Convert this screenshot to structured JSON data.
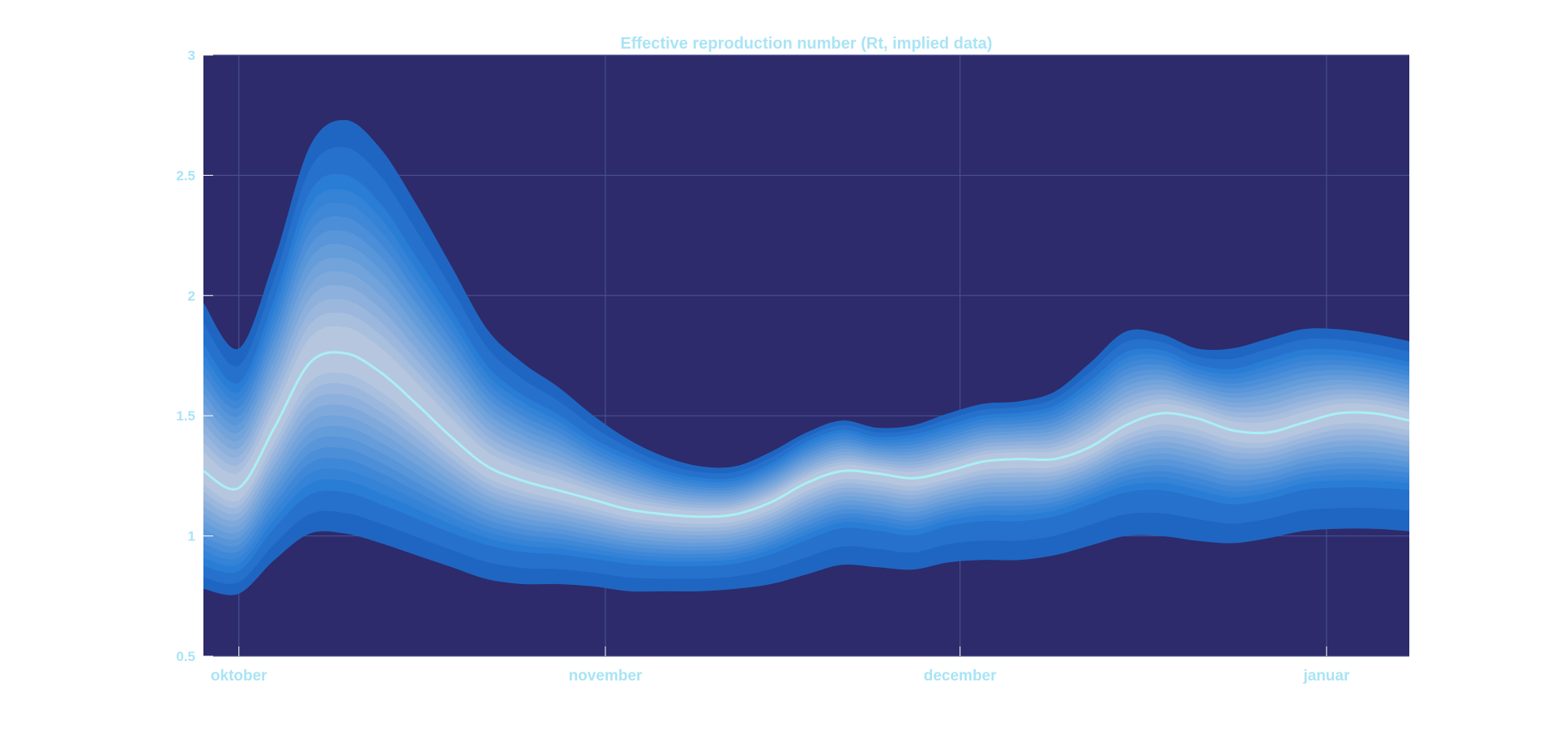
{
  "chart_data": {
    "type": "area",
    "title": "Effective reproduction number (Rt, implied data)",
    "xlabel": "",
    "ylabel": "",
    "x_ticks": [
      "oktober",
      "november",
      "december",
      "januar"
    ],
    "y_ticks": [
      "0.5",
      "1",
      "1.5",
      "2",
      "2.5",
      "3"
    ],
    "xlim": [
      "2020-09-28",
      "2021-01-08"
    ],
    "ylim": [
      0.5,
      3
    ],
    "grid": true,
    "x": [
      "2020-09-28",
      "2020-10-01",
      "2020-10-04",
      "2020-10-07",
      "2020-10-10",
      "2020-10-13",
      "2020-10-16",
      "2020-10-19",
      "2020-10-22",
      "2020-10-25",
      "2020-10-28",
      "2020-10-31",
      "2020-11-03",
      "2020-11-06",
      "2020-11-09",
      "2020-11-12",
      "2020-11-15",
      "2020-11-18",
      "2020-11-21",
      "2020-11-24",
      "2020-11-27",
      "2020-11-30",
      "2020-12-03",
      "2020-12-06",
      "2020-12-09",
      "2020-12-12",
      "2020-12-15",
      "2020-12-18",
      "2020-12-21",
      "2020-12-24",
      "2020-12-27",
      "2020-12-30",
      "2021-01-02",
      "2021-01-05",
      "2021-01-08"
    ],
    "median": [
      1.27,
      1.2,
      1.45,
      1.72,
      1.76,
      1.68,
      1.55,
      1.41,
      1.29,
      1.23,
      1.19,
      1.15,
      1.11,
      1.09,
      1.08,
      1.09,
      1.14,
      1.22,
      1.27,
      1.26,
      1.24,
      1.27,
      1.31,
      1.32,
      1.32,
      1.37,
      1.46,
      1.51,
      1.49,
      1.44,
      1.43,
      1.47,
      1.51,
      1.51,
      1.48
    ],
    "bands": [
      {
        "level": "outer",
        "lower": [
          0.78,
          0.76,
          0.9,
          1.01,
          1.01,
          0.97,
          0.92,
          0.87,
          0.82,
          0.8,
          0.8,
          0.79,
          0.77,
          0.77,
          0.77,
          0.78,
          0.8,
          0.84,
          0.88,
          0.87,
          0.86,
          0.89,
          0.9,
          0.9,
          0.92,
          0.96,
          1.0,
          1.0,
          0.98,
          0.97,
          0.99,
          1.02,
          1.03,
          1.03,
          1.02
        ],
        "upper": [
          1.97,
          1.78,
          2.15,
          2.62,
          2.73,
          2.61,
          2.38,
          2.12,
          1.86,
          1.72,
          1.62,
          1.5,
          1.4,
          1.33,
          1.29,
          1.29,
          1.35,
          1.43,
          1.48,
          1.45,
          1.46,
          1.51,
          1.55,
          1.56,
          1.6,
          1.72,
          1.85,
          1.84,
          1.78,
          1.78,
          1.82,
          1.86,
          1.86,
          1.84,
          1.81
        ]
      },
      {
        "level": "inner",
        "lower": [
          0.88,
          0.86,
          1.04,
          1.18,
          1.19,
          1.14,
          1.08,
          1.02,
          0.97,
          0.94,
          0.93,
          0.91,
          0.89,
          0.88,
          0.88,
          0.89,
          0.93,
          0.99,
          1.04,
          1.03,
          1.01,
          1.05,
          1.07,
          1.07,
          1.09,
          1.14,
          1.19,
          1.2,
          1.17,
          1.14,
          1.16,
          1.2,
          1.21,
          1.21,
          1.2
        ],
        "upper": [
          1.79,
          1.63,
          1.98,
          2.42,
          2.49,
          2.37,
          2.15,
          1.93,
          1.7,
          1.58,
          1.5,
          1.4,
          1.33,
          1.27,
          1.24,
          1.24,
          1.3,
          1.39,
          1.44,
          1.41,
          1.42,
          1.46,
          1.5,
          1.51,
          1.54,
          1.64,
          1.76,
          1.77,
          1.71,
          1.69,
          1.73,
          1.77,
          1.77,
          1.75,
          1.72
        ]
      }
    ],
    "colors": {
      "background": "#2d2b6b",
      "outer_band": "#1f66c2",
      "mid_band": "#2b7ed6",
      "inner_band": "#c5cde0",
      "median_line": "#a9f0f5",
      "grid": "#4b5596",
      "text": "#a9e4f5"
    }
  }
}
